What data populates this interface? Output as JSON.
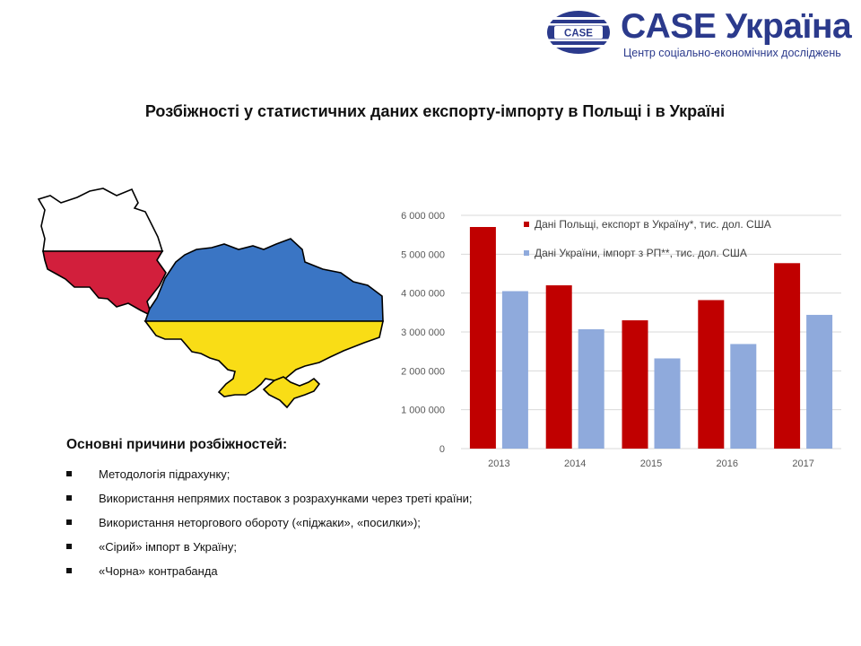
{
  "logo": {
    "emblem_text": "CASE",
    "wordmark": "CASE Україна",
    "subtitle": "Центр соціально-економічних досліджень",
    "brand_color": "#2b3a8c"
  },
  "slide": {
    "title": "Розбіжності у статистичних  даних експорту-імпорту в Польщі і в Україні"
  },
  "map": {
    "poland_colors": [
      "#ffffff",
      "#d21f3c"
    ],
    "ukraine_colors": [
      "#3a75c4",
      "#f9dd16"
    ]
  },
  "chart_data": {
    "type": "bar",
    "categories": [
      "2013",
      "2014",
      "2015",
      "2016",
      "2017"
    ],
    "series": [
      {
        "name": "Дані Польщі, експорт в Україну*, тис. дол. США",
        "values": [
          5700000,
          4200000,
          3300000,
          3820000,
          4770000
        ],
        "color": "#c00000"
      },
      {
        "name": "Дані України, імпорт з РП**, тис. дол. США",
        "values": [
          4050000,
          3070000,
          2320000,
          2690000,
          3440000
        ],
        "color": "#8faadc"
      }
    ],
    "yticks": [
      "0",
      "1 000 000",
      "2 000 000",
      "3 000 000",
      "4 000 000",
      "5 000 000",
      "6 000 000"
    ],
    "ylim": [
      0,
      6000000
    ],
    "grid": true,
    "legend_position": "top-right"
  },
  "reasons": {
    "heading": "Основні причини розбіжностей:",
    "items": [
      "Методологія підрахунку;",
      "Використання непрямих поставок з розрахунками через треті країни;",
      "Використання неторгового обороту («піджаки», «посилки»);",
      "«Сірий» імпорт в Україну;",
      "«Чорна» контрабанда"
    ]
  }
}
